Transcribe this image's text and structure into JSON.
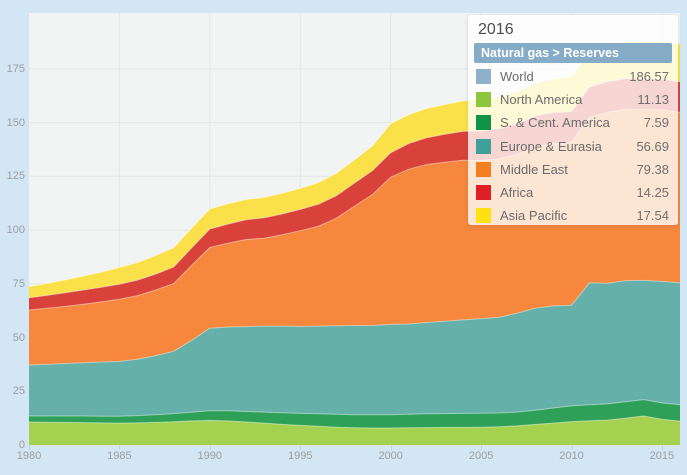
{
  "colors": {
    "page_background": "#d3e6f3",
    "plot_background": "#f1f4f2",
    "grid": "#e3e8e6",
    "axis_text": "#9aa0a4",
    "band_separator": "rgba(255,255,255,0.45)"
  },
  "tooltip": {
    "year": "2016",
    "header": "Natural gas > Reserves",
    "header_bg": "#86abc6",
    "rows": [
      {
        "label": "World",
        "value": "186.57",
        "color": "#8fb0c9"
      },
      {
        "label": "North America",
        "value": "11.13",
        "color": "#8cc63c"
      },
      {
        "label": "S. & Cent. America",
        "value": "7.59",
        "color": "#0f9347"
      },
      {
        "label": "Europe & Eurasia",
        "value": "56.69",
        "color": "#3f9f9a"
      },
      {
        "label": "Middle East",
        "value": "79.38",
        "color": "#f47d21"
      },
      {
        "label": "Africa",
        "value": "14.25",
        "color": "#de1f25"
      },
      {
        "label": "Asia Pacific",
        "value": "17.54",
        "color": "#ffe112"
      }
    ]
  },
  "axes": {
    "y_tick_labels": [
      "0",
      "25",
      "50",
      "75",
      "100",
      "125",
      "150",
      "175"
    ],
    "x_tick_labels": [
      "1980",
      "1985",
      "1990",
      "1995",
      "2000",
      "2005",
      "2010",
      "2015"
    ]
  },
  "chart_data": {
    "type": "area",
    "stacked": true,
    "title": "Natural gas > Reserves",
    "hover_year": 2016,
    "world_total_at_hover": 186.57,
    "grid": true,
    "legend_position": "tooltip-overlay-top-right",
    "ylim": [
      0,
      201
    ],
    "yticks": [
      0,
      25,
      50,
      75,
      100,
      125,
      150,
      175
    ],
    "xticks": [
      1980,
      1985,
      1990,
      1995,
      2000,
      2005,
      2010,
      2015
    ],
    "x": [
      1980,
      1981,
      1982,
      1983,
      1984,
      1985,
      1986,
      1987,
      1988,
      1989,
      1990,
      1991,
      1992,
      1993,
      1994,
      1995,
      1996,
      1997,
      1998,
      1999,
      2000,
      2001,
      2002,
      2003,
      2004,
      2005,
      2006,
      2007,
      2008,
      2009,
      2010,
      2011,
      2012,
      2013,
      2014,
      2015,
      2016
    ],
    "series": [
      {
        "name": "North America",
        "color": "#a5d150",
        "values": [
          10.7,
          10.6,
          10.5,
          10.4,
          10.3,
          10.2,
          10.3,
          10.5,
          10.8,
          11.2,
          11.4,
          11.2,
          10.7,
          10.2,
          9.6,
          9.1,
          8.7,
          8.3,
          8.0,
          7.9,
          7.9,
          8.0,
          8.1,
          8.2,
          8.2,
          8.3,
          8.5,
          8.9,
          9.6,
          10.2,
          10.9,
          11.3,
          11.6,
          12.5,
          13.5,
          12.0,
          11.13
        ]
      },
      {
        "name": "S. & Cent. America",
        "color": "#2fa058",
        "values": [
          2.8,
          2.9,
          3.0,
          3.1,
          3.1,
          3.2,
          3.4,
          3.6,
          3.8,
          4.0,
          4.5,
          4.7,
          4.9,
          5.1,
          5.4,
          5.6,
          5.8,
          6.0,
          6.1,
          6.2,
          6.2,
          6.3,
          6.4,
          6.4,
          6.5,
          6.5,
          6.4,
          6.4,
          6.6,
          7.0,
          7.3,
          7.4,
          7.5,
          7.6,
          7.6,
          7.6,
          7.59
        ]
      },
      {
        "name": "Europe & Eurasia",
        "color": "#65b1aa",
        "values": [
          23.7,
          24.0,
          24.4,
          24.8,
          25.2,
          25.5,
          26.2,
          27.5,
          29.0,
          33.5,
          38.5,
          39.0,
          39.5,
          40.0,
          40.3,
          40.5,
          40.8,
          41.2,
          41.5,
          41.5,
          42.0,
          42.0,
          42.5,
          43.0,
          43.5,
          44.0,
          44.5,
          46.0,
          47.5,
          47.5,
          46.8,
          56.8,
          56.2,
          56.4,
          55.5,
          56.5,
          56.69
        ]
      },
      {
        "name": "Middle East",
        "color": "#f6873c",
        "values": [
          25.6,
          26.1,
          26.6,
          27.2,
          28.0,
          28.9,
          29.6,
          30.5,
          31.5,
          35.0,
          37.5,
          39.0,
          40.5,
          40.9,
          42.5,
          44.5,
          46.5,
          50.0,
          55.5,
          61.0,
          68.5,
          72.0,
          73.5,
          74.0,
          74.3,
          73.5,
          73.8,
          73.9,
          75.0,
          75.5,
          76.0,
          77.0,
          79.5,
          79.8,
          79.5,
          79.9,
          79.38
        ]
      },
      {
        "name": "Africa",
        "color": "#d9423a",
        "values": [
          5.7,
          6.0,
          6.3,
          6.6,
          6.8,
          7.0,
          7.2,
          7.4,
          7.7,
          8.1,
          8.6,
          8.9,
          9.2,
          9.5,
          9.7,
          9.9,
          10.2,
          10.5,
          10.8,
          11.1,
          11.4,
          12.0,
          12.5,
          13.0,
          13.4,
          13.8,
          14.0,
          14.2,
          14.4,
          14.5,
          14.1,
          14.2,
          14.3,
          14.2,
          14.2,
          14.2,
          14.25
        ]
      },
      {
        "name": "Asia Pacific",
        "color": "#fae149",
        "values": [
          5.2,
          5.6,
          6.0,
          6.5,
          7.0,
          7.8,
          8.2,
          8.6,
          9.0,
          9.2,
          9.3,
          9.4,
          9.4,
          9.5,
          9.6,
          9.8,
          10.1,
          10.4,
          10.8,
          11.5,
          13.6,
          13.4,
          13.6,
          13.8,
          14.2,
          14.6,
          14.8,
          15.0,
          15.2,
          15.6,
          16.2,
          16.3,
          16.8,
          17.0,
          17.2,
          17.4,
          17.54
        ]
      }
    ]
  }
}
